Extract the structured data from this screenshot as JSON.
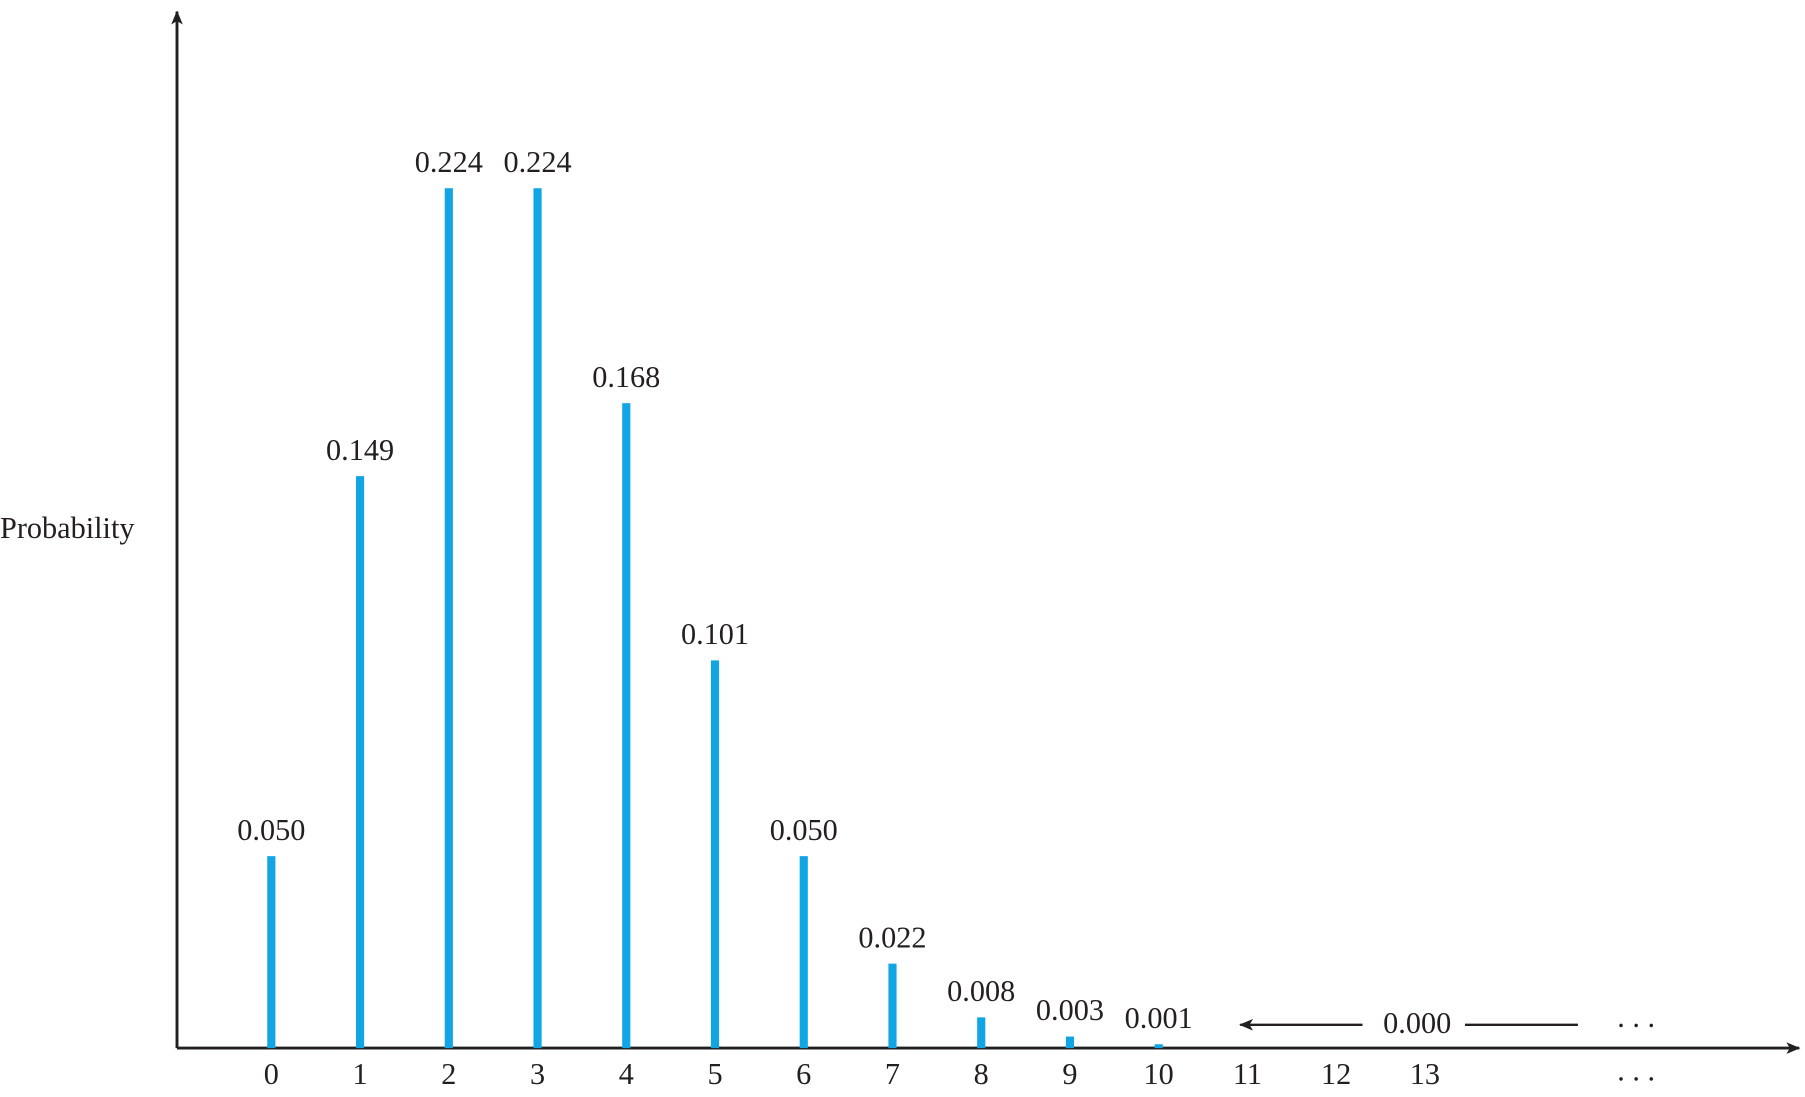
{
  "chart_data": {
    "type": "bar",
    "y_label": "Probability",
    "categories": [
      "0",
      "1",
      "2",
      "3",
      "4",
      "5",
      "6",
      "7",
      "8",
      "9",
      "10",
      "11",
      "12",
      "13"
    ],
    "values": [
      0.05,
      0.149,
      0.224,
      0.224,
      0.168,
      0.101,
      0.05,
      0.022,
      0.008,
      0.003,
      0.001,
      0,
      0,
      0
    ],
    "value_labels": [
      "0.050",
      "0.149",
      "0.224",
      "0.224",
      "0.168",
      "0.101",
      "0.050",
      "0.022",
      "0.008",
      "0.003",
      "0.001",
      null,
      null,
      null
    ],
    "annotation": "0.000",
    "ellipsis": ". . .",
    "color": "#12a5e3",
    "ylim": [
      0,
      0.27
    ]
  }
}
